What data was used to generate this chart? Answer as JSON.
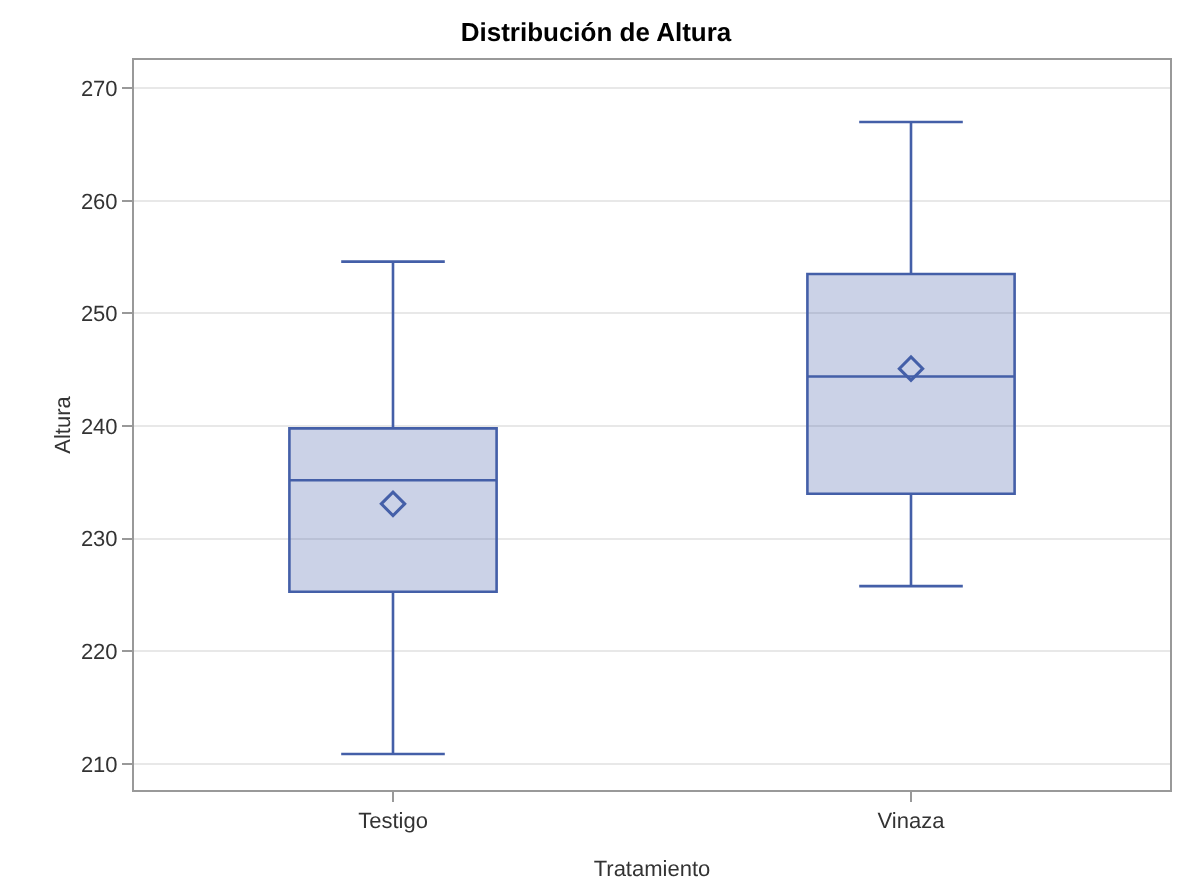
{
  "chart_data": {
    "type": "box",
    "title": "Distribución de Altura",
    "xlabel": "Tratamiento",
    "ylabel": "Altura",
    "categories": [
      "Testigo",
      "Vinaza"
    ],
    "boxes": [
      {
        "low": 210.9,
        "q1": 225.3,
        "median": 235.2,
        "q3": 239.8,
        "high": 254.6,
        "mean": 233.1
      },
      {
        "low": 225.8,
        "q1": 234.0,
        "median": 244.4,
        "q3": 253.5,
        "high": 267.0,
        "mean": 245.1
      }
    ],
    "color": "#445fa8",
    "ylim": [
      207.7,
      272.5
    ],
    "yticks": [
      210,
      220,
      230,
      240,
      250,
      260,
      270
    ],
    "grid": "y",
    "marker": "diamond"
  }
}
